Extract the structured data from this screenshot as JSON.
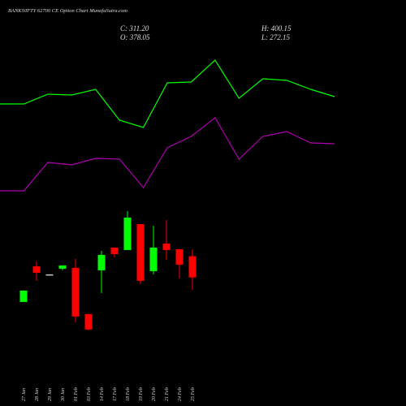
{
  "chart_data": [
    {
      "type": "candlestick",
      "title": "BANKNIFTY 62700 CE Option Chart MunafaSutra.com",
      "annotations": [
        "C: 311.20",
        "O: 378.05",
        "H: 400.15",
        "L: 272.15"
      ],
      "categories": [
        "27 Jan",
        "28 Jan",
        "29 Jan",
        "30 Jan",
        "01 Feb",
        "03 Feb",
        "14 Feb",
        "17 Feb",
        "18 Feb",
        "19 Feb",
        "20 Feb",
        "21 Feb",
        "24 Feb",
        "25 Feb"
      ],
      "open": [
        233.7,
        346.4,
        320.8,
        338.7,
        341.3,
        195.4,
        333.6,
        405.3,
        397.6,
        479.5,
        331.0,
        418.1,
        400.2,
        378.05
      ],
      "high": [
        269.6,
        361.7,
        320.8,
        349.0,
        369.4,
        195.4,
        395.0,
        405.3,
        520.5,
        479.5,
        474.4,
        492.3,
        400.2,
        400.15
      ],
      "low": [
        233.7,
        300.3,
        320.8,
        333.6,
        169.8,
        144.2,
        261.9,
        374.6,
        397.6,
        290.1,
        320.8,
        366.9,
        308.0,
        272.15
      ],
      "close": [
        269.6,
        325.9,
        320.8,
        349.0,
        187.7,
        146.7,
        382.2,
        384.8,
        500.0,
        300.3,
        405.3,
        397.6,
        351.5,
        311.2
      ],
      "up_color": "#00ff00",
      "down_color": "#ff0000",
      "doji_color": "#cccccc",
      "ylim": [
        100,
        560
      ]
    },
    {
      "type": "line",
      "x": [
        0,
        1,
        2,
        3,
        4,
        5,
        6,
        7,
        8,
        9,
        10,
        11,
        12,
        13,
        14
      ],
      "xlim": [
        0,
        14
      ],
      "ylim": [
        0,
        100
      ],
      "series": [
        {
          "color": "#00ff00",
          "values": [
            48.8,
            48.8,
            53.6,
            53.2,
            56,
            40.8,
            37.2,
            59.2,
            59.6,
            70.4,
            51.6,
            61.2,
            60.4,
            56,
            52.4
          ]
        },
        {
          "color": "#b000b0",
          "values": [
            6,
            6,
            20,
            18.8,
            22,
            21.6,
            7.6,
            27.2,
            32.8,
            42,
            21.6,
            32.8,
            35.2,
            29.6,
            29.2
          ]
        }
      ]
    }
  ]
}
